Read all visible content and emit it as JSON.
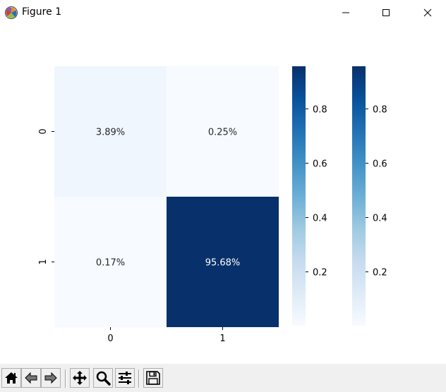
{
  "window": {
    "title": "Figure 1",
    "app_icon": "matplotlib-icon",
    "controls": [
      "minimize-icon",
      "maximize-icon",
      "close-icon"
    ]
  },
  "toolbar": {
    "buttons": [
      {
        "name": "home-button",
        "icon": "home-icon"
      },
      {
        "name": "back-button",
        "icon": "back-arrow-icon"
      },
      {
        "name": "forward-button",
        "icon": "forward-arrow-icon"
      },
      {
        "name": "pan-button",
        "icon": "move-icon"
      },
      {
        "name": "zoom-button",
        "icon": "magnifier-icon"
      },
      {
        "name": "configure-subplots-button",
        "icon": "sliders-icon"
      },
      {
        "name": "save-button",
        "icon": "floppy-disk-icon"
      }
    ]
  },
  "chart_data": {
    "type": "heatmap",
    "title": "",
    "xlabel": "",
    "ylabel": "",
    "x_tick_labels": [
      "0",
      "1"
    ],
    "y_tick_labels": [
      "0",
      "1"
    ],
    "values": [
      [
        0.0389,
        0.0025
      ],
      [
        0.0017,
        0.9568
      ]
    ],
    "annotations": [
      [
        "3.89%",
        "0.25%"
      ],
      [
        "0.17%",
        "95.68%"
      ]
    ],
    "colormap": "Blues",
    "colormap_stops": [
      "#f7fbff",
      "#deebf7",
      "#c6dbef",
      "#9ecae1",
      "#6baed6",
      "#4292c6",
      "#2171b5",
      "#08519c",
      "#08306b"
    ],
    "vmin": 0.0017,
    "vmax": 0.9568,
    "colorbar_ticks": [
      0.2,
      0.4,
      0.6,
      0.8
    ],
    "colorbar_tick_labels": [
      "0.2",
      "0.4",
      "0.6",
      "0.8"
    ],
    "colorbar_count": 2
  }
}
